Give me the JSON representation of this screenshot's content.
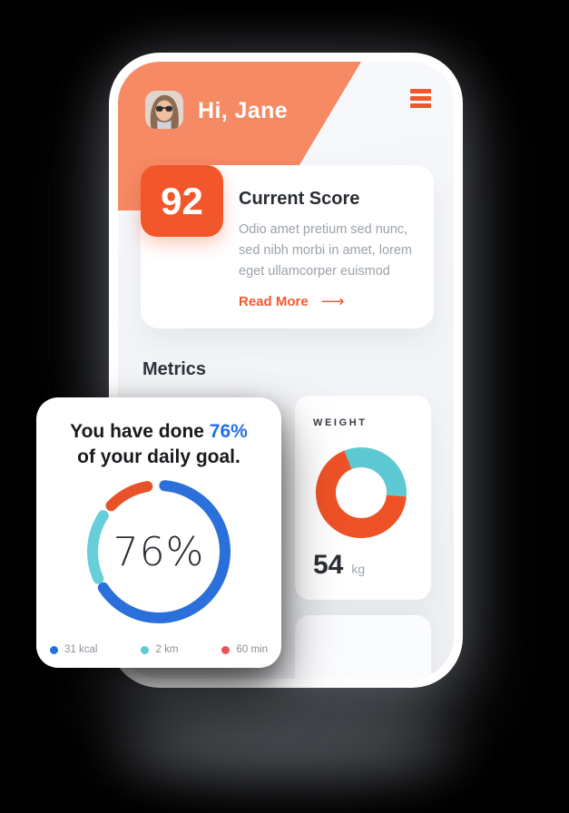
{
  "header": {
    "greeting": "Hi, Jane",
    "avatar": "profile-photo-woman-sunglasses",
    "menu_icon": "hamburger-icon"
  },
  "score_card": {
    "score": "92",
    "title": "Current Score",
    "body_lines": [
      "Odio amet pretium sed nunc,",
      "sed nibh morbi in amet, lorem",
      "eget ullamcorper euismod"
    ],
    "link_label": "Read More",
    "link_arrow": "⟶"
  },
  "metrics": {
    "heading": "Metrics"
  },
  "goal_card": {
    "title_prefix": "You have done ",
    "title_highlight": "76%",
    "title_line2": "of your daily goal.",
    "center_label": "76%",
    "legend": [
      {
        "label": "31 kcal",
        "color": "#2470E0"
      },
      {
        "label": "2 km",
        "color": "#5FC9D6"
      },
      {
        "label": "60 min",
        "color": "#EA5355"
      }
    ]
  },
  "weight_card": {
    "title": "WEIGHT",
    "value": "54",
    "unit": "kg"
  },
  "colors": {
    "header_salmon": "#F68A64",
    "accent_orange": "#F2572B",
    "link_orange": "#F05A31",
    "highlight_blue": "#2470E8",
    "text_dark": "#282C33",
    "text_gray": "#9BA2AA"
  },
  "chart_data": [
    {
      "type": "donut",
      "title": "Daily goal progress ring",
      "center_label": "76%",
      "progress_percent": 76,
      "legend": [
        "31 kcal",
        "2 km",
        "60 min"
      ],
      "segments": [
        {
          "name": "calories",
          "label": "31 kcal",
          "color": "#2B6FDB",
          "start_deg": 5,
          "end_deg": 237
        },
        {
          "name": "distance",
          "label": "2 km",
          "color": "#66CFD9",
          "start_deg": 246,
          "end_deg": 303
        },
        {
          "name": "minutes",
          "label": "60 min",
          "color": "#E75228",
          "start_deg": 314,
          "end_deg": 350
        }
      ]
    },
    {
      "type": "donut",
      "title": "Weight",
      "value": 54,
      "unit": "kg",
      "segments": [
        {
          "name": "secondary",
          "color": "#5FC9D3",
          "start_deg": -22,
          "end_deg": 95
        },
        {
          "name": "primary",
          "color": "#EE5226",
          "start_deg": 95,
          "end_deg": 338
        }
      ]
    }
  ]
}
